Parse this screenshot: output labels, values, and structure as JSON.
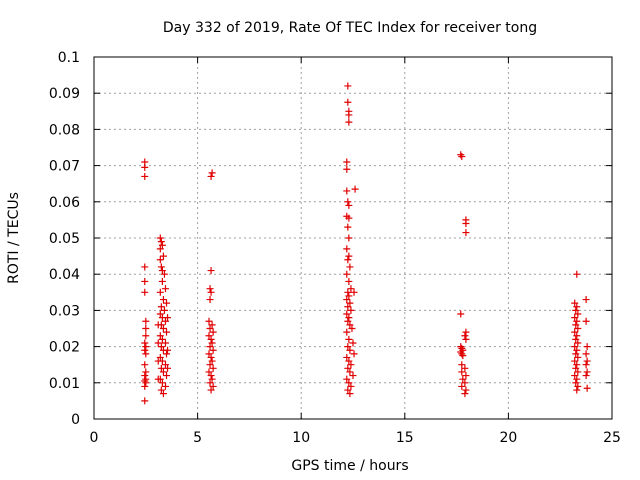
{
  "chart_data": {
    "type": "scatter",
    "title": "Day 332 of 2019, Rate Of TEC Index for receiver tong",
    "xlabel": "GPS time / hours",
    "ylabel": "ROTI / TECUs",
    "xlim": [
      0,
      25
    ],
    "ylim": [
      0,
      0.1
    ],
    "x_ticks": [
      "0",
      "5",
      "10",
      "15",
      "20",
      "25"
    ],
    "y_ticks": [
      "0",
      "0.01",
      "0.02",
      "0.03",
      "0.04",
      "0.05",
      "0.06",
      "0.07",
      "0.08",
      "0.09",
      "0.1"
    ],
    "grid": true,
    "marker": "plus",
    "color": "#e00000",
    "series": [
      {
        "points": [
          [
            2.45,
            0.071
          ],
          [
            2.45,
            0.0695
          ],
          [
            2.45,
            0.067
          ],
          [
            2.45,
            0.042
          ],
          [
            2.45,
            0.038
          ],
          [
            2.45,
            0.035
          ],
          [
            2.5,
            0.027
          ],
          [
            2.5,
            0.025
          ],
          [
            2.5,
            0.023
          ],
          [
            2.45,
            0.021
          ],
          [
            2.5,
            0.02
          ],
          [
            2.45,
            0.019
          ],
          [
            2.5,
            0.018
          ],
          [
            2.45,
            0.015
          ],
          [
            2.5,
            0.013
          ],
          [
            2.45,
            0.012
          ],
          [
            2.5,
            0.011
          ],
          [
            2.45,
            0.0105
          ],
          [
            2.5,
            0.01
          ],
          [
            2.45,
            0.009
          ],
          [
            2.45,
            0.005
          ],
          [
            3.2,
            0.05
          ],
          [
            3.25,
            0.049
          ],
          [
            3.3,
            0.048
          ],
          [
            3.2,
            0.047
          ],
          [
            3.35,
            0.045
          ],
          [
            3.2,
            0.044
          ],
          [
            3.25,
            0.042
          ],
          [
            3.3,
            0.041
          ],
          [
            3.4,
            0.04
          ],
          [
            3.3,
            0.038
          ],
          [
            3.45,
            0.036
          ],
          [
            3.2,
            0.035
          ],
          [
            3.35,
            0.033
          ],
          [
            3.5,
            0.032
          ],
          [
            3.25,
            0.031
          ],
          [
            3.4,
            0.03
          ],
          [
            3.2,
            0.029
          ],
          [
            3.3,
            0.028
          ],
          [
            3.45,
            0.027
          ],
          [
            3.25,
            0.026
          ],
          [
            3.35,
            0.025
          ],
          [
            3.5,
            0.024
          ],
          [
            3.2,
            0.023
          ],
          [
            3.3,
            0.022
          ],
          [
            3.45,
            0.021
          ],
          [
            3.25,
            0.02
          ],
          [
            3.35,
            0.019
          ],
          [
            3.5,
            0.018
          ],
          [
            3.2,
            0.017
          ],
          [
            3.3,
            0.016
          ],
          [
            3.45,
            0.015
          ],
          [
            3.25,
            0.014
          ],
          [
            3.35,
            0.013
          ],
          [
            3.5,
            0.012
          ],
          [
            3.2,
            0.011
          ],
          [
            3.3,
            0.01
          ],
          [
            3.45,
            0.009
          ],
          [
            3.25,
            0.008
          ],
          [
            3.35,
            0.007
          ],
          [
            3.1,
            0.026
          ],
          [
            3.1,
            0.021
          ],
          [
            3.1,
            0.016
          ],
          [
            3.1,
            0.011
          ],
          [
            3.55,
            0.028
          ],
          [
            3.55,
            0.019
          ],
          [
            3.55,
            0.014
          ],
          [
            5.65,
            0.067
          ],
          [
            5.7,
            0.068
          ],
          [
            5.65,
            0.041
          ],
          [
            5.6,
            0.036
          ],
          [
            5.65,
            0.035
          ],
          [
            5.6,
            0.033
          ],
          [
            5.55,
            0.027
          ],
          [
            5.7,
            0.026
          ],
          [
            5.6,
            0.025
          ],
          [
            5.75,
            0.024
          ],
          [
            5.55,
            0.023
          ],
          [
            5.65,
            0.022
          ],
          [
            5.7,
            0.021
          ],
          [
            5.6,
            0.02
          ],
          [
            5.75,
            0.019
          ],
          [
            5.55,
            0.018
          ],
          [
            5.65,
            0.017
          ],
          [
            5.7,
            0.016
          ],
          [
            5.6,
            0.015
          ],
          [
            5.75,
            0.014
          ],
          [
            5.55,
            0.013
          ],
          [
            5.65,
            0.012
          ],
          [
            5.7,
            0.011
          ],
          [
            5.6,
            0.01
          ],
          [
            5.75,
            0.009
          ],
          [
            5.65,
            0.008
          ],
          [
            12.25,
            0.092
          ],
          [
            12.25,
            0.0875
          ],
          [
            12.3,
            0.085
          ],
          [
            12.3,
            0.084
          ],
          [
            12.3,
            0.082
          ],
          [
            12.2,
            0.071
          ],
          [
            12.2,
            0.069
          ],
          [
            12.6,
            0.0635
          ],
          [
            12.2,
            0.063
          ],
          [
            12.25,
            0.06
          ],
          [
            12.3,
            0.059
          ],
          [
            12.2,
            0.056
          ],
          [
            12.3,
            0.0555
          ],
          [
            12.25,
            0.053
          ],
          [
            12.3,
            0.05
          ],
          [
            12.2,
            0.047
          ],
          [
            12.3,
            0.045
          ],
          [
            12.25,
            0.044
          ],
          [
            12.35,
            0.042
          ],
          [
            12.2,
            0.04
          ],
          [
            12.3,
            0.038
          ],
          [
            12.4,
            0.036
          ],
          [
            12.25,
            0.035
          ],
          [
            12.55,
            0.035
          ],
          [
            12.3,
            0.034
          ],
          [
            12.2,
            0.033
          ],
          [
            12.35,
            0.032
          ],
          [
            12.25,
            0.031
          ],
          [
            12.4,
            0.03
          ],
          [
            12.2,
            0.029
          ],
          [
            12.3,
            0.028
          ],
          [
            12.25,
            0.027
          ],
          [
            12.35,
            0.026
          ],
          [
            12.45,
            0.025
          ],
          [
            12.2,
            0.024
          ],
          [
            12.3,
            0.022
          ],
          [
            12.5,
            0.021
          ],
          [
            12.25,
            0.02
          ],
          [
            12.35,
            0.019
          ],
          [
            12.55,
            0.018
          ],
          [
            12.2,
            0.017
          ],
          [
            12.3,
            0.016
          ],
          [
            12.4,
            0.015
          ],
          [
            12.25,
            0.014
          ],
          [
            12.35,
            0.013
          ],
          [
            12.5,
            0.012
          ],
          [
            12.2,
            0.011
          ],
          [
            12.3,
            0.01
          ],
          [
            12.4,
            0.009
          ],
          [
            12.25,
            0.008
          ],
          [
            12.35,
            0.007
          ],
          [
            17.7,
            0.073
          ],
          [
            17.75,
            0.0725
          ],
          [
            17.95,
            0.055
          ],
          [
            17.95,
            0.054
          ],
          [
            17.95,
            0.0515
          ],
          [
            17.7,
            0.029
          ],
          [
            17.95,
            0.024
          ],
          [
            17.9,
            0.023
          ],
          [
            17.95,
            0.022
          ],
          [
            17.7,
            0.02
          ],
          [
            17.75,
            0.0195
          ],
          [
            17.8,
            0.019
          ],
          [
            17.7,
            0.0185
          ],
          [
            17.75,
            0.018
          ],
          [
            17.8,
            0.0175
          ],
          [
            17.75,
            0.015
          ],
          [
            17.9,
            0.014
          ],
          [
            17.75,
            0.013
          ],
          [
            17.95,
            0.012
          ],
          [
            17.8,
            0.011
          ],
          [
            17.9,
            0.01
          ],
          [
            17.75,
            0.009
          ],
          [
            17.95,
            0.008
          ],
          [
            17.9,
            0.007
          ],
          [
            23.3,
            0.04
          ],
          [
            23.2,
            0.032
          ],
          [
            23.3,
            0.031
          ],
          [
            23.25,
            0.03
          ],
          [
            23.35,
            0.029
          ],
          [
            23.2,
            0.028
          ],
          [
            23.3,
            0.027
          ],
          [
            23.25,
            0.026
          ],
          [
            23.35,
            0.025
          ],
          [
            23.2,
            0.024
          ],
          [
            23.3,
            0.023
          ],
          [
            23.25,
            0.022
          ],
          [
            23.35,
            0.021
          ],
          [
            23.2,
            0.02
          ],
          [
            23.3,
            0.019
          ],
          [
            23.25,
            0.018
          ],
          [
            23.35,
            0.017
          ],
          [
            23.2,
            0.016
          ],
          [
            23.3,
            0.015
          ],
          [
            23.25,
            0.014
          ],
          [
            23.35,
            0.013
          ],
          [
            23.2,
            0.012
          ],
          [
            23.3,
            0.011
          ],
          [
            23.25,
            0.01
          ],
          [
            23.35,
            0.009
          ],
          [
            23.3,
            0.008
          ],
          [
            23.75,
            0.033
          ],
          [
            23.75,
            0.027
          ],
          [
            23.8,
            0.02
          ],
          [
            23.75,
            0.018
          ],
          [
            23.8,
            0.016
          ],
          [
            23.75,
            0.015
          ],
          [
            23.8,
            0.013
          ],
          [
            23.75,
            0.012
          ],
          [
            23.8,
            0.0085
          ]
        ]
      }
    ]
  }
}
